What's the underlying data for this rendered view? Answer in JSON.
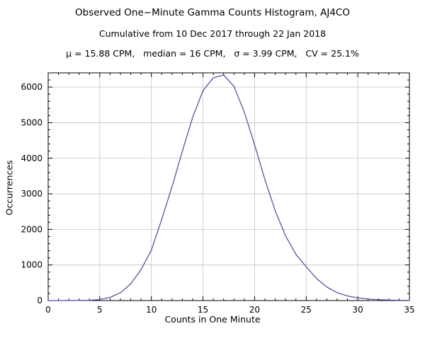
{
  "title": "Observed One−Minute Gamma Counts Histogram, AJ4CO",
  "subtitle": "Cumulative from 10 Dec 2017 through 22 Jan 2018",
  "stats_line": "μ = 15.88 CPM,   median = 16 CPM,   σ = 3.99 CPM,   CV = 25.1%",
  "chart_data": {
    "type": "line",
    "title": "Observed One−Minute Gamma Counts Histogram, AJ4CO",
    "subtitle": "Cumulative from 10 Dec 2017 through 22 Jan 2018",
    "annotation": "μ = 15.88 CPM, median = 16 CPM, σ = 3.99 CPM, CV = 25.1%",
    "xlabel": "Counts in One Minute",
    "ylabel": "Occurrences",
    "xlim": [
      0,
      35
    ],
    "ylim": [
      0,
      6400
    ],
    "xticks": [
      0,
      5,
      10,
      15,
      20,
      25,
      30,
      35
    ],
    "yticks": [
      0,
      1000,
      2000,
      3000,
      4000,
      5000,
      6000
    ],
    "x_minor_step": 1,
    "y_minor_step": 200,
    "grid": true,
    "legend": "none",
    "line_color": "#5454a4",
    "grid_color": "#c4c4c4",
    "frame_color": "#000000",
    "x": [
      0,
      1,
      2,
      3,
      4,
      5,
      6,
      7,
      8,
      9,
      10,
      11,
      12,
      13,
      14,
      15,
      16,
      17,
      18,
      19,
      20,
      21,
      22,
      23,
      24,
      25,
      26,
      27,
      28,
      29,
      30,
      31,
      32,
      33,
      34,
      35
    ],
    "values": [
      0,
      0,
      1,
      2,
      8,
      30,
      90,
      220,
      470,
      870,
      1420,
      2280,
      3200,
      4200,
      5150,
      5900,
      6260,
      6340,
      6020,
      5300,
      4380,
      3400,
      2520,
      1820,
      1300,
      950,
      620,
      380,
      220,
      130,
      75,
      45,
      25,
      15,
      8,
      5
    ]
  }
}
